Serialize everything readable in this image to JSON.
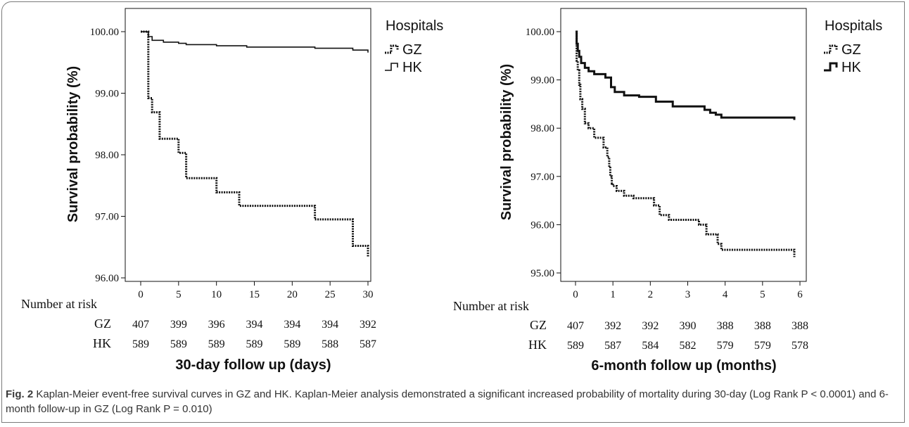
{
  "chart_data": [
    {
      "type": "line",
      "ylabel": "Survival probability (%)",
      "xlabel": "30-day follow up (days)",
      "xlim": [
        0,
        30
      ],
      "ylim": [
        96.0,
        100.0
      ],
      "x_ticks": [
        "0",
        "5",
        "10",
        "15",
        "20",
        "25",
        "30"
      ],
      "y_ticks": [
        "96.00",
        "97.00",
        "98.00",
        "99.00",
        "100.00"
      ],
      "legend_title": "Hospitals",
      "legend_position": "right",
      "series": [
        {
          "name": "GZ",
          "style": "dotted",
          "x": [
            0,
            1,
            1.5,
            2.5,
            3.5,
            5,
            6,
            10,
            13,
            23,
            28,
            30,
            30
          ],
          "y": [
            100.0,
            98.92,
            98.69,
            98.26,
            98.26,
            98.03,
            97.62,
            97.39,
            97.17,
            96.95,
            96.52,
            96.52,
            96.34
          ]
        },
        {
          "name": "HK",
          "style": "solid",
          "x": [
            0,
            1,
            1.5,
            3,
            5,
            6,
            10,
            14,
            23,
            28,
            30
          ],
          "y": [
            100.0,
            99.92,
            99.86,
            99.83,
            99.81,
            99.79,
            99.77,
            99.75,
            99.73,
            99.7,
            99.66
          ]
        }
      ],
      "risk_table": {
        "label": "Number at risk",
        "rows": [
          {
            "group": "GZ",
            "values": [
              "407",
              "399",
              "396",
              "394",
              "394",
              "394",
              "392"
            ]
          },
          {
            "group": "HK",
            "values": [
              "589",
              "589",
              "589",
              "589",
              "589",
              "588",
              "587"
            ]
          }
        ]
      }
    },
    {
      "type": "line",
      "ylabel": "Survival probability (%)",
      "xlabel": "6-month follow up (months)",
      "xlim": [
        0,
        6
      ],
      "ylim": [
        95.0,
        100.0
      ],
      "x_ticks": [
        "0",
        "1",
        "2",
        "3",
        "4",
        "5",
        "6"
      ],
      "y_ticks": [
        "95.00",
        "96.00",
        "97.00",
        "98.00",
        "99.00",
        "100.00"
      ],
      "legend_title": "Hospitals",
      "legend_position": "right",
      "series": [
        {
          "name": "GZ",
          "style": "dotted",
          "x": [
            0,
            0.03,
            0.06,
            0.1,
            0.13,
            0.18,
            0.25,
            0.35,
            0.5,
            0.75,
            0.85,
            0.9,
            0.93,
            0.97,
            1.0,
            1.1,
            1.3,
            1.55,
            2.1,
            2.25,
            2.5,
            3.3,
            3.5,
            3.8,
            3.9,
            5.85,
            5.85
          ],
          "y": [
            100.0,
            99.4,
            99.2,
            98.9,
            98.6,
            98.4,
            98.1,
            98.0,
            97.8,
            97.6,
            97.4,
            97.2,
            97.0,
            96.85,
            96.8,
            96.7,
            96.6,
            96.55,
            96.4,
            96.2,
            96.1,
            96.0,
            95.8,
            95.6,
            95.48,
            95.48,
            95.33
          ]
        },
        {
          "name": "HK",
          "style": "solid",
          "x": [
            0,
            0.03,
            0.06,
            0.1,
            0.15,
            0.25,
            0.35,
            0.5,
            0.8,
            0.95,
            1.05,
            1.3,
            1.7,
            2.15,
            2.6,
            3.45,
            3.6,
            3.75,
            3.9,
            5.85,
            5.85
          ],
          "y": [
            100.0,
            99.75,
            99.6,
            99.48,
            99.35,
            99.25,
            99.18,
            99.12,
            99.05,
            98.85,
            98.75,
            98.68,
            98.65,
            98.55,
            98.45,
            98.38,
            98.32,
            98.28,
            98.22,
            98.22,
            98.17
          ]
        }
      ],
      "risk_table": {
        "label": "Number at risk",
        "rows": [
          {
            "group": "GZ",
            "values": [
              "407",
              "392",
              "392",
              "390",
              "388",
              "388",
              "388"
            ]
          },
          {
            "group": "HK",
            "values": [
              "589",
              "587",
              "584",
              "582",
              "579",
              "579",
              "578"
            ]
          }
        ]
      }
    }
  ],
  "caption": {
    "label": "Fig. 2",
    "text": "Kaplan-Meier event-free survival curves in GZ and HK. Kaplan-Meier analysis demonstrated a significant increased probability of mortality during 30-day (Log Rank P < 0.0001) and 6-month follow-up in GZ (Log Rank P = 0.010)"
  },
  "colors": {
    "line": "#111111",
    "frame": "#7a7a7a",
    "caption_text": "#333333"
  }
}
